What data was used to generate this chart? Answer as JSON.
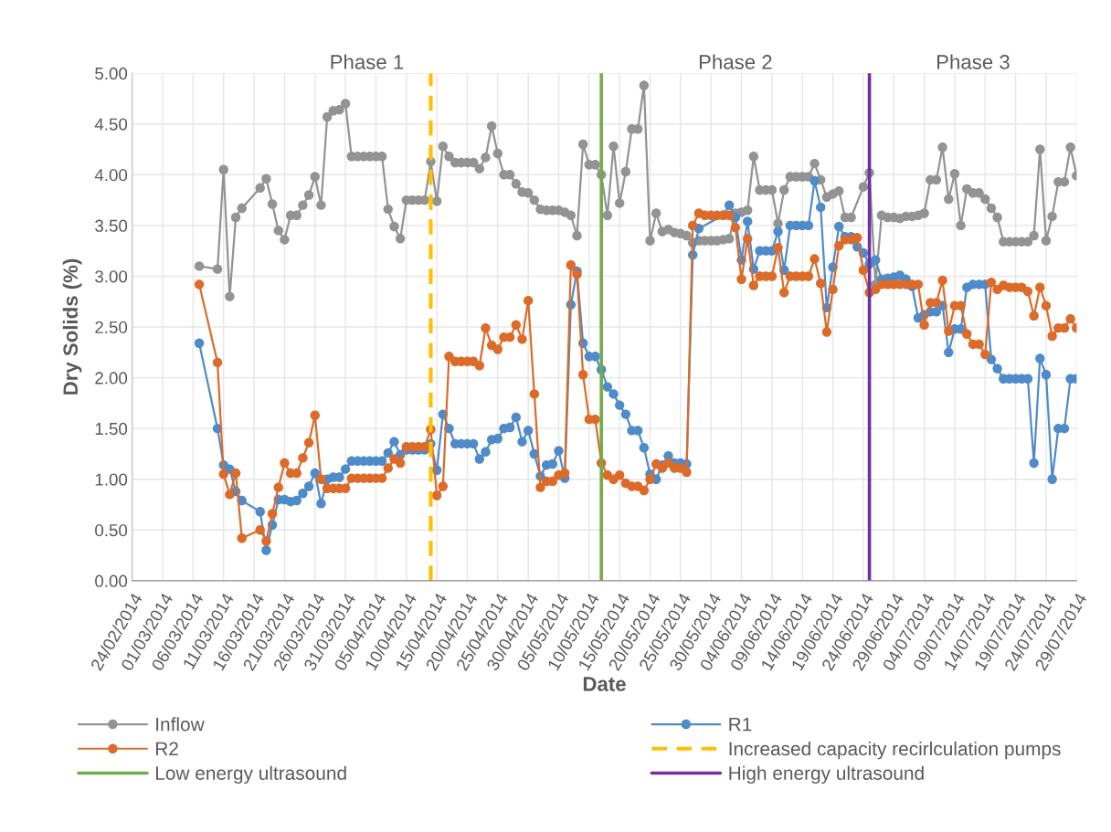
{
  "chart_data": {
    "type": "line",
    "xlabel": "Date",
    "ylabel": "Dry Solids (%)",
    "annotations": [
      "Phase 1",
      "Phase 2",
      "Phase 3"
    ],
    "x": [
      "2014-03-07",
      "2014-03-10",
      "2014-03-11",
      "2014-03-12",
      "2014-03-13",
      "2014-03-14",
      "2014-03-17",
      "2014-03-18",
      "2014-03-19",
      "2014-03-20",
      "2014-03-21",
      "2014-03-22",
      "2014-03-23",
      "2014-03-24",
      "2014-03-25",
      "2014-03-26",
      "2014-03-27",
      "2014-03-28",
      "2014-03-29",
      "2014-03-30",
      "2014-03-31",
      "2014-04-01",
      "2014-04-02",
      "2014-04-03",
      "2014-04-04",
      "2014-04-05",
      "2014-04-06",
      "2014-04-07",
      "2014-04-08",
      "2014-04-09",
      "2014-04-10",
      "2014-04-11",
      "2014-04-12",
      "2014-04-13",
      "2014-04-14",
      "2014-04-15",
      "2014-04-16",
      "2014-04-17",
      "2014-04-18",
      "2014-04-19",
      "2014-04-20",
      "2014-04-21",
      "2014-04-22",
      "2014-04-23",
      "2014-04-24",
      "2014-04-25",
      "2014-04-26",
      "2014-04-27",
      "2014-04-28",
      "2014-04-29",
      "2014-04-30",
      "2014-05-01",
      "2014-05-02",
      "2014-05-03",
      "2014-05-04",
      "2014-05-05",
      "2014-05-06",
      "2014-05-07",
      "2014-05-08",
      "2014-05-09",
      "2014-05-10",
      "2014-05-11",
      "2014-05-12",
      "2014-05-13",
      "2014-05-14",
      "2014-05-15",
      "2014-05-16",
      "2014-05-17",
      "2014-05-18",
      "2014-05-19",
      "2014-05-20",
      "2014-05-21",
      "2014-05-22",
      "2014-05-23",
      "2014-05-24",
      "2014-05-25",
      "2014-05-26",
      "2014-05-27",
      "2014-05-28",
      "2014-05-29",
      "2014-05-30",
      "2014-05-31",
      "2014-06-01",
      "2014-06-02",
      "2014-06-03",
      "2014-06-04",
      "2014-06-05",
      "2014-06-06",
      "2014-06-07",
      "2014-06-08",
      "2014-06-09",
      "2014-06-10",
      "2014-06-11",
      "2014-06-12",
      "2014-06-13",
      "2014-06-14",
      "2014-06-15",
      "2014-06-16",
      "2014-06-17",
      "2014-06-18",
      "2014-06-19",
      "2014-06-20",
      "2014-06-21",
      "2014-06-22",
      "2014-06-23",
      "2014-06-24",
      "2014-06-25",
      "2014-06-26",
      "2014-06-27",
      "2014-06-28",
      "2014-06-29",
      "2014-06-30",
      "2014-07-01",
      "2014-07-02",
      "2014-07-03",
      "2014-07-04",
      "2014-07-05",
      "2014-07-06",
      "2014-07-07",
      "2014-07-08",
      "2014-07-09",
      "2014-07-10",
      "2014-07-11",
      "2014-07-12",
      "2014-07-13",
      "2014-07-14",
      "2014-07-15",
      "2014-07-16",
      "2014-07-17",
      "2014-07-18",
      "2014-07-19",
      "2014-07-20",
      "2014-07-21",
      "2014-07-22",
      "2014-07-23",
      "2014-07-24",
      "2014-07-25",
      "2014-07-26",
      "2014-07-27",
      "2014-07-28",
      "2014-07-29"
    ],
    "series": [
      {
        "name": "Inflow",
        "color": "#939393",
        "values": [
          3.1,
          3.07,
          4.05,
          2.8,
          3.58,
          3.67,
          3.87,
          3.96,
          3.71,
          3.45,
          3.36,
          3.6,
          3.6,
          3.7,
          3.8,
          3.98,
          3.7,
          4.57,
          4.63,
          4.64,
          4.7,
          4.18,
          4.18,
          4.18,
          4.18,
          4.18,
          4.18,
          3.66,
          3.49,
          3.37,
          3.75,
          3.75,
          3.75,
          3.75,
          4.13,
          3.74,
          4.28,
          4.18,
          4.12,
          4.12,
          4.12,
          4.12,
          4.06,
          4.17,
          4.48,
          4.21,
          4.0,
          4.0,
          3.91,
          3.83,
          3.82,
          3.75,
          3.66,
          3.65,
          3.65,
          3.65,
          3.63,
          3.6,
          3.4,
          4.3,
          4.1,
          4.1,
          4.0,
          3.6,
          4.28,
          3.72,
          4.03,
          4.45,
          4.45,
          4.88,
          3.35,
          3.62,
          3.44,
          3.46,
          3.43,
          3.42,
          3.4,
          3.33,
          3.35,
          3.35,
          3.35,
          3.35,
          3.36,
          3.37,
          3.62,
          3.63,
          3.65,
          4.18,
          3.85,
          3.85,
          3.85,
          3.52,
          3.85,
          3.98,
          3.98,
          3.98,
          3.98,
          4.11,
          3.95,
          3.78,
          3.81,
          3.84,
          3.58,
          3.58,
          null,
          3.88,
          4.02,
          2.92,
          3.6,
          3.58,
          3.58,
          3.57,
          3.59,
          3.59,
          3.6,
          3.62,
          3.95,
          3.95,
          4.27,
          3.76,
          4.01,
          3.5,
          3.86,
          3.82,
          3.82,
          3.76,
          3.67,
          3.58,
          3.34,
          3.34,
          3.34,
          3.34,
          3.34,
          3.4,
          4.25,
          3.35,
          3.59,
          3.93,
          3.93,
          4.27,
          3.99
        ]
      },
      {
        "name": "R1",
        "color": "#4f8bc8",
        "values": [
          2.34,
          1.5,
          1.14,
          1.1,
          0.88,
          0.79,
          0.68,
          0.3,
          0.55,
          0.8,
          0.8,
          0.78,
          0.79,
          0.86,
          0.93,
          1.06,
          0.76,
          1.0,
          1.02,
          1.02,
          1.1,
          1.18,
          1.18,
          1.18,
          1.18,
          1.18,
          1.18,
          1.26,
          1.37,
          1.24,
          1.29,
          1.29,
          1.29,
          1.29,
          1.35,
          1.09,
          1.64,
          1.5,
          1.35,
          1.35,
          1.35,
          1.35,
          1.2,
          1.27,
          1.39,
          1.4,
          1.5,
          1.51,
          1.61,
          1.37,
          1.48,
          1.25,
          1.03,
          1.14,
          1.15,
          1.28,
          1.01,
          2.72,
          3.05,
          2.34,
          2.21,
          2.21,
          2.08,
          1.91,
          1.84,
          1.73,
          1.64,
          1.48,
          1.48,
          1.31,
          1.05,
          1.0,
          1.14,
          1.23,
          1.16,
          1.16,
          1.15,
          3.21,
          3.47,
          null,
          null,
          null,
          3.6,
          3.7,
          3.58,
          3.16,
          3.54,
          3.07,
          3.25,
          3.25,
          3.25,
          3.44,
          3.06,
          3.5,
          3.5,
          3.5,
          3.5,
          3.94,
          3.68,
          2.69,
          3.09,
          3.49,
          3.39,
          3.39,
          3.29,
          3.23,
          3.12,
          3.16,
          2.97,
          2.98,
          2.99,
          3.01,
          2.97,
          2.9,
          2.59,
          2.62,
          2.65,
          2.65,
          2.71,
          2.25,
          2.48,
          2.48,
          2.89,
          2.92,
          2.92,
          2.92,
          2.18,
          2.09,
          1.99,
          1.99,
          1.99,
          1.99,
          1.99,
          1.16,
          2.19,
          2.03,
          1.0,
          1.5,
          1.5,
          1.99,
          1.99
        ]
      },
      {
        "name": "R2",
        "color": "#dc6b2a",
        "values": [
          2.92,
          2.15,
          1.05,
          0.85,
          1.06,
          0.42,
          0.5,
          0.39,
          0.66,
          0.92,
          1.16,
          1.06,
          1.06,
          1.21,
          1.36,
          1.63,
          1.0,
          0.91,
          0.91,
          0.91,
          0.91,
          1.01,
          1.01,
          1.01,
          1.01,
          1.01,
          1.01,
          1.11,
          1.2,
          1.16,
          1.32,
          1.32,
          1.32,
          1.32,
          1.49,
          0.84,
          0.93,
          2.21,
          2.16,
          2.16,
          2.16,
          2.16,
          2.12,
          2.49,
          2.32,
          2.28,
          2.4,
          2.4,
          2.52,
          2.38,
          2.76,
          1.84,
          0.92,
          0.98,
          0.98,
          1.04,
          1.06,
          3.11,
          3.02,
          2.03,
          1.59,
          1.59,
          1.16,
          1.04,
          1.0,
          1.04,
          0.96,
          0.93,
          0.93,
          0.89,
          1.0,
          1.15,
          1.11,
          1.16,
          1.11,
          1.11,
          1.07,
          3.5,
          3.62,
          3.6,
          3.6,
          3.6,
          3.6,
          3.6,
          3.48,
          2.97,
          3.37,
          2.91,
          3.0,
          3.0,
          3.0,
          3.28,
          2.84,
          3.0,
          3.0,
          3.0,
          3.0,
          3.17,
          2.93,
          2.45,
          2.87,
          3.3,
          3.36,
          3.36,
          3.38,
          3.06,
          2.84,
          2.87,
          2.92,
          2.92,
          2.92,
          2.92,
          2.92,
          2.92,
          2.92,
          2.52,
          2.74,
          2.74,
          2.96,
          2.46,
          2.71,
          2.71,
          2.43,
          2.33,
          2.33,
          2.23,
          2.94,
          2.87,
          2.91,
          2.89,
          2.89,
          2.89,
          2.85,
          2.61,
          2.89,
          2.71,
          2.41,
          2.49,
          2.49,
          2.58,
          2.49
        ]
      }
    ],
    "ref_lines": [
      {
        "axis": "x",
        "value": "2014-04-14",
        "label": "Increased capacity recirlculation pumps",
        "color": "#ffc000",
        "line_style": "dashed"
      },
      {
        "axis": "x",
        "value": "2014-05-12",
        "label": "Low energy ultrasound",
        "color": "#70ad47",
        "line_style": "solid"
      },
      {
        "axis": "x",
        "value": "2014-06-25",
        "label": "High energy ultrasound",
        "color": "#7030a0",
        "line_style": "solid"
      }
    ],
    "xlim": [
      "2014-02-24",
      "2014-07-29"
    ],
    "xticks": [
      {
        "value": "2014-02-24",
        "label": "24/02/2014"
      },
      {
        "value": "2014-03-01",
        "label": "01/03/2014"
      },
      {
        "value": "2014-03-06",
        "label": "06/03/2014"
      },
      {
        "value": "2014-03-11",
        "label": "11/03/2014"
      },
      {
        "value": "2014-03-16",
        "label": "16/03/2014"
      },
      {
        "value": "2014-03-21",
        "label": "21/03/2014"
      },
      {
        "value": "2014-03-26",
        "label": "26/03/2014"
      },
      {
        "value": "2014-03-31",
        "label": "31/03/2014"
      },
      {
        "value": "2014-04-05",
        "label": "05/04/2014"
      },
      {
        "value": "2014-04-10",
        "label": "10/04/2014"
      },
      {
        "value": "2014-04-15",
        "label": "15/04/2014"
      },
      {
        "value": "2014-04-20",
        "label": "20/04/2014"
      },
      {
        "value": "2014-04-25",
        "label": "25/04/2014"
      },
      {
        "value": "2014-04-30",
        "label": "30/04/2014"
      },
      {
        "value": "2014-05-05",
        "label": "05/05/2014"
      },
      {
        "value": "2014-05-10",
        "label": "10/05/2014"
      },
      {
        "value": "2014-05-15",
        "label": "15/05/2014"
      },
      {
        "value": "2014-05-20",
        "label": "20/05/2014"
      },
      {
        "value": "2014-05-25",
        "label": "25/05/2014"
      },
      {
        "value": "2014-05-30",
        "label": "30/05/2014"
      },
      {
        "value": "2014-06-04",
        "label": "04/06/2014"
      },
      {
        "value": "2014-06-09",
        "label": "09/06/2014"
      },
      {
        "value": "2014-06-14",
        "label": "14/06/2014"
      },
      {
        "value": "2014-06-19",
        "label": "19/06/2014"
      },
      {
        "value": "2014-06-24",
        "label": "24/06/2014"
      },
      {
        "value": "2014-06-29",
        "label": "29/06/2014"
      },
      {
        "value": "2014-07-04",
        "label": "04/07/2014"
      },
      {
        "value": "2014-07-09",
        "label": "09/07/2014"
      },
      {
        "value": "2014-07-14",
        "label": "14/07/2014"
      },
      {
        "value": "2014-07-19",
        "label": "19/07/2014"
      },
      {
        "value": "2014-07-24",
        "label": "24/07/2014"
      },
      {
        "value": "2014-07-29",
        "label": "29/07/2014"
      }
    ],
    "ylim": [
      0,
      5
    ],
    "yticks": [
      {
        "value": 0,
        "label": "0.00"
      },
      {
        "value": 0.5,
        "label": "0.50"
      },
      {
        "value": 1,
        "label": "1.00"
      },
      {
        "value": 1.5,
        "label": "1.50"
      },
      {
        "value": 2,
        "label": "2.00"
      },
      {
        "value": 2.5,
        "label": "2.50"
      },
      {
        "value": 3,
        "label": "3.00"
      },
      {
        "value": 3.5,
        "label": "3.50"
      },
      {
        "value": 4,
        "label": "4.00"
      },
      {
        "value": 4.5,
        "label": "4.50"
      },
      {
        "value": 5,
        "label": "5.00"
      }
    ],
    "grid": true,
    "legend": "bottom",
    "marker": "circle",
    "line_style": "solid"
  }
}
